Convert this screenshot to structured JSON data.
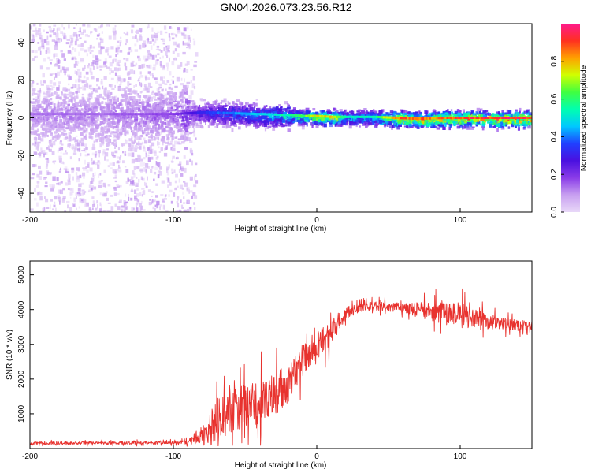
{
  "title": "GN04.2026.073.23.56.R12",
  "chart_data": [
    {
      "type": "heatmap",
      "xlabel": "Height of straight line (km)",
      "ylabel": "Frequency (Hz)",
      "xlim": [
        -200,
        150
      ],
      "ylim": [
        -50,
        50
      ],
      "xticks": [
        -200,
        -100,
        0,
        100
      ],
      "xtick_labels": [
        "-200",
        "-100",
        "0",
        "100"
      ],
      "yticks": [
        -40,
        -20,
        0,
        20,
        40
      ],
      "ytick_labels": [
        "-40",
        "-20",
        "0",
        "20",
        "40"
      ],
      "colorbar": {
        "label": "Normalized spectral amplitude",
        "range": [
          0,
          1
        ],
        "ticks": [
          0,
          0.2,
          0.4,
          0.6,
          0.8
        ],
        "tick_labels": [
          "0.0",
          "0.2",
          "0.4",
          "0.6",
          "0.8"
        ],
        "colormap": [
          "#e8d8f8",
          "#c8a0f0",
          "#8a3ce8",
          "#4a10e0",
          "#2040ff",
          "#00c8ff",
          "#00ffb0",
          "#40ff40",
          "#d0ff00",
          "#ffa000",
          "#ff3020",
          "#ff1a8c"
        ]
      },
      "ridge": {
        "x": [
          -200,
          -150,
          -100,
          -80,
          -60,
          -40,
          -20,
          -10,
          0,
          10,
          20,
          40,
          55,
          70,
          90,
          110,
          130,
          150
        ],
        "freq": [
          2,
          2,
          2,
          3,
          2.5,
          2,
          1.5,
          1,
          1,
          0.5,
          0.5,
          0.5,
          0,
          -0.5,
          0,
          0,
          0,
          0
        ],
        "peak_amplitude": [
          0.15,
          0.15,
          0.2,
          0.35,
          0.45,
          0.5,
          0.6,
          0.7,
          0.8,
          0.85,
          0.55,
          0.6,
          0.95,
          0.9,
          0.95,
          0.98,
          1.0,
          1.0
        ]
      }
    },
    {
      "type": "line",
      "xlabel": "Height of straight line (km)",
      "ylabel": "SNR (10 * v/v)",
      "xlim": [
        -200,
        150
      ],
      "ylim": [
        0,
        5400
      ],
      "xticks": [
        -200,
        -100,
        0,
        100
      ],
      "xtick_labels": [
        "-200",
        "-100",
        "0",
        "100"
      ],
      "yticks": [
        1000,
        2000,
        3000,
        4000,
        5000
      ],
      "ytick_labels": [
        "1000",
        "2000",
        "3000",
        "4000",
        "5000"
      ],
      "color": "#e8322e",
      "series": [
        {
          "name": "SNR",
          "x": [
            -200,
            -150,
            -100,
            -90,
            -80,
            -70,
            -60,
            -50,
            -40,
            -30,
            -20,
            -10,
            0,
            10,
            20,
            30,
            40,
            60,
            80,
            100,
            110,
            120,
            130,
            140,
            150
          ],
          "y": [
            150,
            160,
            170,
            190,
            400,
            800,
            1100,
            1200,
            1350,
            1500,
            1900,
            2500,
            3000,
            3300,
            3900,
            4050,
            4100,
            4050,
            3950,
            3850,
            3750,
            3650,
            3600,
            3550,
            3550
          ],
          "noise": [
            60,
            60,
            60,
            80,
            400,
            900,
            900,
            900,
            900,
            900,
            800,
            700,
            600,
            500,
            250,
            180,
            180,
            200,
            400,
            550,
            420,
            300,
            250,
            220,
            200
          ]
        }
      ]
    }
  ]
}
